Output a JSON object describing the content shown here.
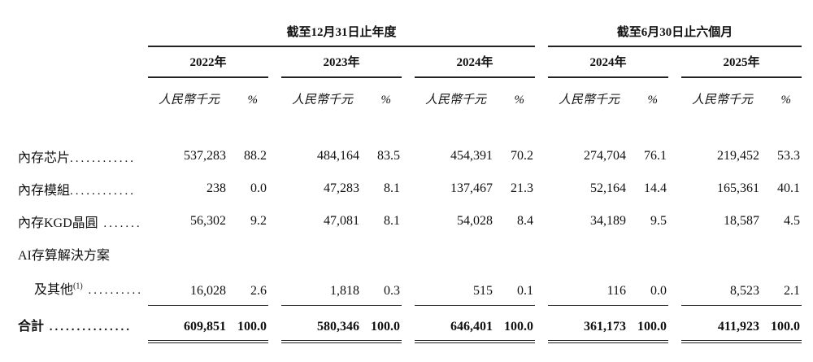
{
  "headers": {
    "period_annual": "截至12月31日止年度",
    "period_interim": "截至6月30日止六個月",
    "years": [
      "2022年",
      "2023年",
      "2024年",
      "2024年",
      "2025年"
    ],
    "unit": "人民幣千元",
    "percent": "%"
  },
  "rows": [
    {
      "label": "內存芯片",
      "leader": "............",
      "values": [
        "537,283",
        "88.2",
        "484,164",
        "83.5",
        "454,391",
        "70.2",
        "274,704",
        "76.1",
        "219,452",
        "53.3"
      ]
    },
    {
      "label": "內存模組",
      "leader": "............",
      "values": [
        "238",
        "0.0",
        "47,283",
        "8.1",
        "137,467",
        "21.3",
        "52,164",
        "14.4",
        "165,361",
        "40.1"
      ]
    },
    {
      "label": "內存KGD晶圓",
      "leader": " .......",
      "values": [
        "56,302",
        "9.2",
        "47,081",
        "8.1",
        "54,028",
        "8.4",
        "34,189",
        "9.5",
        "18,587",
        "4.5"
      ]
    },
    {
      "label": "AI存算解決方案"
    },
    {
      "label": "及其他",
      "sup": "(1)",
      "leader": " ..........",
      "values": [
        "16,028",
        "2.6",
        "1,818",
        "0.3",
        "515",
        "0.1",
        "116",
        "0.0",
        "8,523",
        "2.1"
      ]
    },
    {
      "label": "合計",
      "leader": " ...............",
      "values": [
        "609,851",
        "100.0",
        "580,346",
        "100.0",
        "646,401",
        "100.0",
        "361,173",
        "100.0",
        "411,923",
        "100.0"
      ]
    }
  ]
}
